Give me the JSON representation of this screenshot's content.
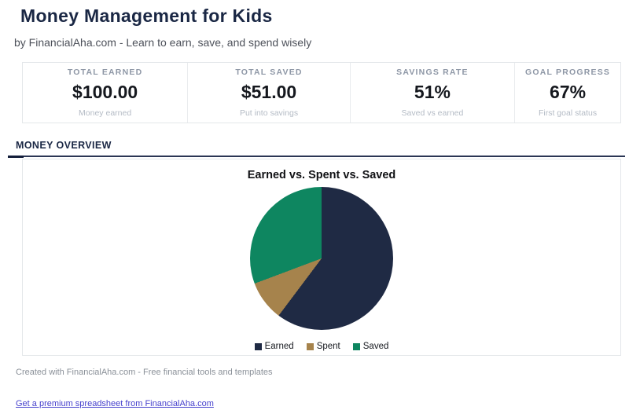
{
  "page": {
    "title": "Money Management for Kids",
    "subtitle": "by FinancialAha.com - Learn to earn, save, and spend wisely"
  },
  "stats": [
    {
      "label": "TOTAL EARNED",
      "value": "$100.00",
      "sublabel": "Money earned"
    },
    {
      "label": "TOTAL SAVED",
      "value": "$51.00",
      "sublabel": "Put into savings"
    },
    {
      "label": "SAVINGS RATE",
      "value": "51%",
      "sublabel": "Saved vs earned"
    },
    {
      "label": "GOAL PROGRESS",
      "value": "67%",
      "sublabel": "First goal status"
    }
  ],
  "section": {
    "title": "MONEY OVERVIEW"
  },
  "chart_data": {
    "type": "pie",
    "title": "Earned vs. Spent vs. Saved",
    "labels": [
      "Earned",
      "Spent",
      "Saved"
    ],
    "values": [
      100,
      15,
      51
    ],
    "approx_percentages": [
      60.2,
      9.1,
      30.7
    ],
    "colors": [
      "#1f2a44",
      "#a6834c",
      "#0e8660"
    ],
    "start_angle_deg": 0,
    "direction": "clockwise",
    "legend_position": "bottom"
  },
  "footer": {
    "credit": "Created with FinancialAha.com - Free financial tools and templates",
    "link_label": "Get a premium spreadsheet from FinancialAha.com"
  },
  "colors": {
    "heading": "#1a2744",
    "accent_rule": "#2a3553",
    "link": "#4742cd",
    "card_border": "#e4e7ea"
  }
}
